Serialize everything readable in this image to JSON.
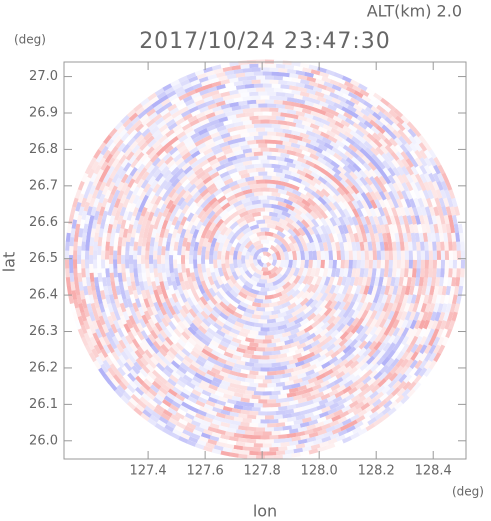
{
  "chart_data": {
    "type": "heatmap",
    "title": "2017/10/24 23:47:30",
    "subtitle": "ALT(km) 2.0",
    "x_label": "lon",
    "y_label": "lat",
    "x_unit": "(deg)",
    "y_unit": "(deg)",
    "xlim": [
      127.105,
      128.515
    ],
    "ylim": [
      25.95,
      27.04
    ],
    "xticks": [
      127.4,
      127.6,
      127.8,
      {
        "value": 128,
        "label": "128.0"
      },
      128.2,
      128.4
    ],
    "yticks": [
      {
        "value": 26,
        "label": "26.0"
      },
      26.1,
      26.2,
      26.3,
      26.4,
      26.5,
      26.6,
      26.7,
      26.8,
      26.9,
      {
        "value": 27,
        "label": "27.0"
      }
    ],
    "colors": [
      "#f7a8a8",
      "#b2b2f7"
    ]
  }
}
